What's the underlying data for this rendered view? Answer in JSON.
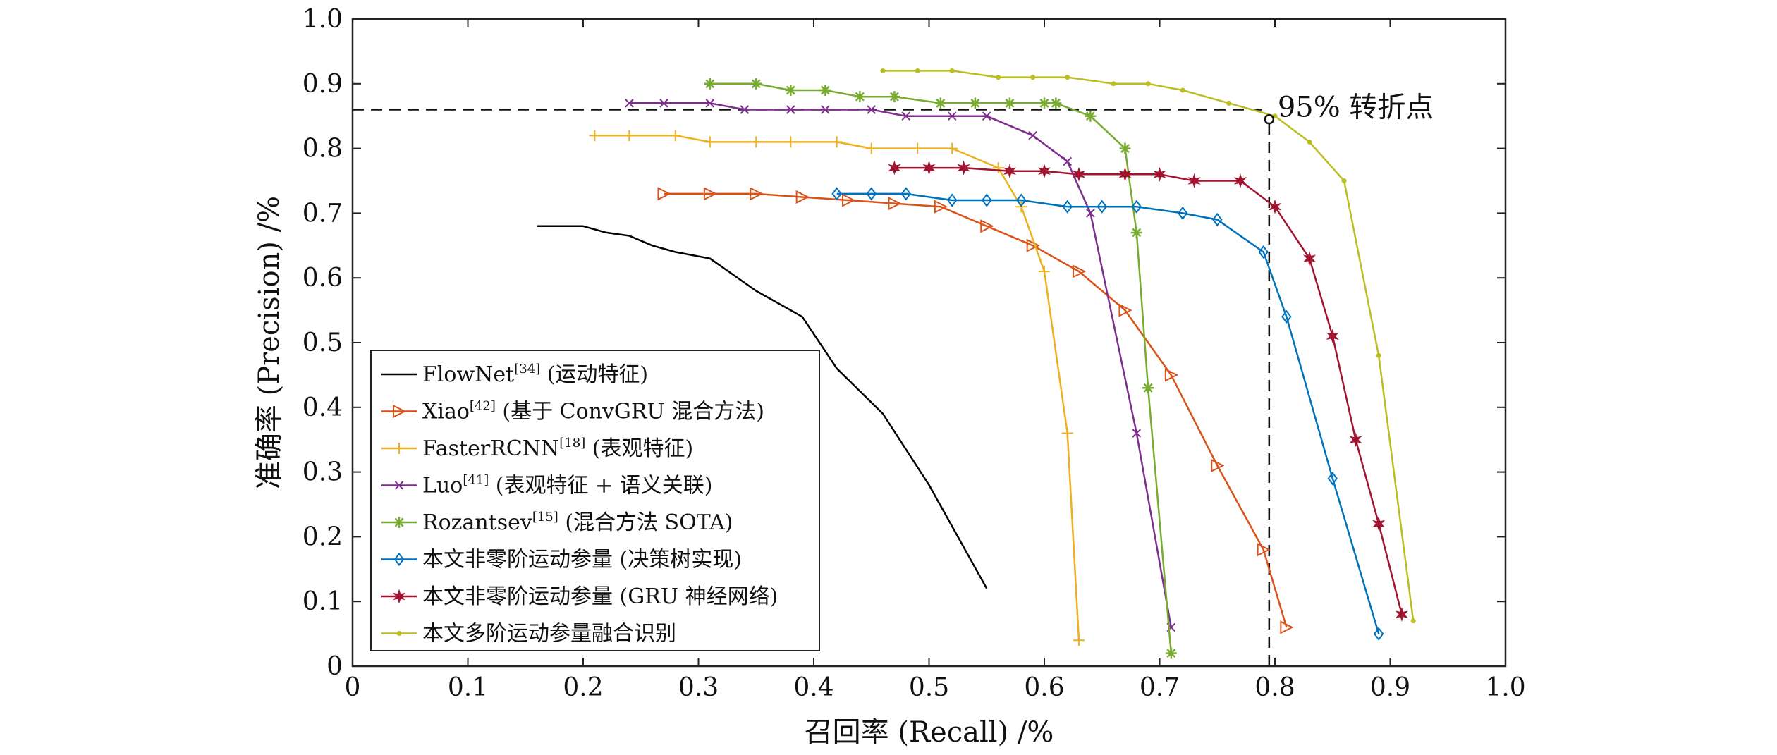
{
  "chart_data": {
    "type": "line",
    "xlabel": "召回率 (Recall) /%",
    "ylabel": "准确率 (Precision) /%",
    "xlim": [
      0,
      1.0
    ],
    "ylim": [
      0,
      1.0
    ],
    "xticks": [
      "0",
      "0.1",
      "0.2",
      "0.3",
      "0.4",
      "0.5",
      "0.6",
      "0.7",
      "0.8",
      "0.9",
      "1.0"
    ],
    "yticks": [
      "0",
      "0.1",
      "0.2",
      "0.3",
      "0.4",
      "0.5",
      "0.6",
      "0.7",
      "0.8",
      "0.9",
      "1.0"
    ],
    "grid": false,
    "legend_position": "bottom-left",
    "annotation": {
      "text": "95%  转折点",
      "x": 0.795,
      "y": 0.845
    },
    "reference_lines": [
      {
        "orientation": "horizontal",
        "y": 0.86,
        "x_from": 0,
        "x_to": 0.795,
        "style": "dashed"
      },
      {
        "orientation": "vertical",
        "x": 0.795,
        "y_from": 0,
        "y_to": 0.845,
        "style": "dashed"
      }
    ],
    "series": [
      {
        "name": "FlowNet",
        "ref": "[34]",
        "note": "(运动特征)",
        "color": "#000000",
        "marker": "none",
        "x": [
          0.16,
          0.2,
          0.22,
          0.24,
          0.26,
          0.28,
          0.31,
          0.35,
          0.39,
          0.42,
          0.46,
          0.5,
          0.55
        ],
        "y": [
          0.68,
          0.68,
          0.67,
          0.665,
          0.65,
          0.64,
          0.63,
          0.58,
          0.54,
          0.46,
          0.39,
          0.28,
          0.12
        ]
      },
      {
        "name": "Xiao",
        "ref": "[42]",
        "note": "(基于 ConvGRU 混合方法)",
        "color": "#d95319",
        "marker": "triangle-right",
        "x": [
          0.27,
          0.31,
          0.35,
          0.39,
          0.43,
          0.47,
          0.51,
          0.55,
          0.59,
          0.63,
          0.67,
          0.71,
          0.75,
          0.79,
          0.81
        ],
        "y": [
          0.73,
          0.73,
          0.73,
          0.725,
          0.72,
          0.715,
          0.71,
          0.68,
          0.65,
          0.61,
          0.55,
          0.45,
          0.31,
          0.18,
          0.06
        ]
      },
      {
        "name": "FasterRCNN",
        "ref": "[18]",
        "note": "(表观特征)",
        "color": "#edb120",
        "marker": "plus",
        "x": [
          0.21,
          0.24,
          0.28,
          0.31,
          0.35,
          0.38,
          0.42,
          0.45,
          0.49,
          0.52,
          0.56,
          0.58,
          0.6,
          0.62,
          0.63
        ],
        "y": [
          0.82,
          0.82,
          0.82,
          0.81,
          0.81,
          0.81,
          0.81,
          0.8,
          0.8,
          0.8,
          0.77,
          0.71,
          0.61,
          0.36,
          0.04
        ]
      },
      {
        "name": "Luo",
        "ref": "[41]",
        "note": "(表观特征 + 语义关联)",
        "color": "#7e2f8e",
        "marker": "x",
        "x": [
          0.24,
          0.27,
          0.31,
          0.34,
          0.38,
          0.41,
          0.45,
          0.48,
          0.52,
          0.55,
          0.59,
          0.62,
          0.64,
          0.68,
          0.71
        ],
        "y": [
          0.87,
          0.87,
          0.87,
          0.86,
          0.86,
          0.86,
          0.86,
          0.85,
          0.85,
          0.85,
          0.82,
          0.78,
          0.7,
          0.36,
          0.06
        ]
      },
      {
        "name": "Rozantsev",
        "ref": "[15]",
        "note": "(混合方法 SOTA)",
        "color": "#77ac30",
        "marker": "asterisk",
        "x": [
          0.31,
          0.35,
          0.38,
          0.41,
          0.44,
          0.47,
          0.51,
          0.54,
          0.57,
          0.6,
          0.61,
          0.64,
          0.67,
          0.68,
          0.69,
          0.71
        ],
        "y": [
          0.9,
          0.9,
          0.89,
          0.89,
          0.88,
          0.88,
          0.87,
          0.87,
          0.87,
          0.87,
          0.87,
          0.85,
          0.8,
          0.67,
          0.43,
          0.02
        ]
      },
      {
        "name": "本文非零阶运动参量",
        "ref": "",
        "note": "(决策树实现)",
        "color": "#0072bd",
        "marker": "diamond",
        "x": [
          0.42,
          0.45,
          0.48,
          0.52,
          0.55,
          0.58,
          0.62,
          0.65,
          0.68,
          0.72,
          0.75,
          0.79,
          0.81,
          0.85,
          0.89
        ],
        "y": [
          0.73,
          0.73,
          0.73,
          0.72,
          0.72,
          0.72,
          0.71,
          0.71,
          0.71,
          0.7,
          0.69,
          0.64,
          0.54,
          0.29,
          0.05
        ]
      },
      {
        "name": "本文非零阶运动参量",
        "ref": "",
        "note": "(GRU 神经网络)",
        "color": "#a2142f",
        "marker": "star",
        "x": [
          0.47,
          0.5,
          0.53,
          0.57,
          0.6,
          0.63,
          0.67,
          0.7,
          0.73,
          0.77,
          0.8,
          0.83,
          0.85,
          0.87,
          0.89,
          0.91
        ],
        "y": [
          0.77,
          0.77,
          0.77,
          0.765,
          0.765,
          0.76,
          0.76,
          0.76,
          0.75,
          0.75,
          0.71,
          0.63,
          0.51,
          0.35,
          0.22,
          0.08
        ]
      },
      {
        "name": "本文多阶运动参量融合识别",
        "ref": "",
        "note": "",
        "color": "#bcbd22",
        "marker": "dot",
        "x": [
          0.46,
          0.49,
          0.52,
          0.56,
          0.59,
          0.62,
          0.66,
          0.69,
          0.72,
          0.76,
          0.8,
          0.83,
          0.86,
          0.89,
          0.92
        ],
        "y": [
          0.92,
          0.92,
          0.92,
          0.91,
          0.91,
          0.91,
          0.9,
          0.9,
          0.89,
          0.87,
          0.85,
          0.81,
          0.75,
          0.48,
          0.07
        ]
      }
    ]
  }
}
